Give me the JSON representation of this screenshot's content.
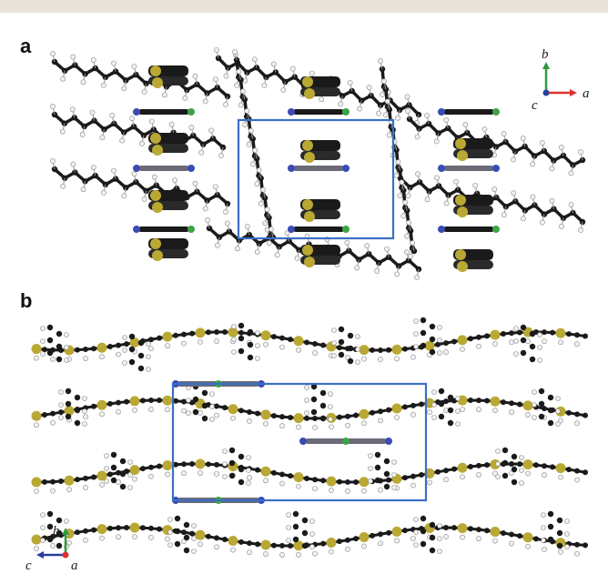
{
  "panels": [
    {
      "id": "a",
      "label": "a",
      "axes": {
        "up": "b",
        "right": "a",
        "out": "c"
      },
      "colors": {
        "up": "#2e9a3a",
        "right": "#e03030",
        "out": "#2a3e9c"
      }
    },
    {
      "id": "b",
      "label": "b",
      "axes": {
        "up": "b",
        "left": "c",
        "out": "a"
      },
      "colors": {
        "up": "#2e9a3a",
        "left": "#2a3e9c",
        "out": "#e03030"
      }
    }
  ],
  "colors": {
    "carbon": "#1a1a1a",
    "hydrogen": "#f2f2f2",
    "sulfur": "#b9a833",
    "nitrogen": "#3a4bb3",
    "chlorine": "#3fa447",
    "cell": "#3a6fc4",
    "acceptor": "#6a6a78"
  }
}
